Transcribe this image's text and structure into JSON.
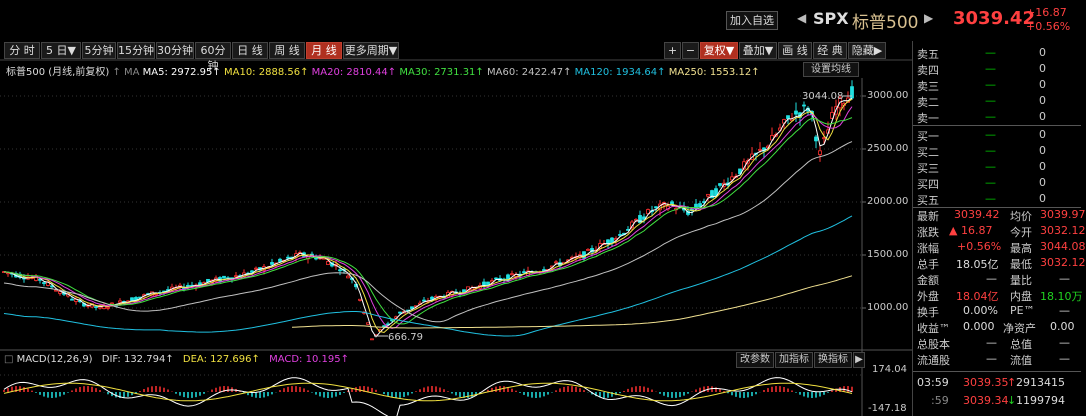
{
  "header": {
    "add_watch": "加入自选",
    "prev": "◀",
    "next": "▶",
    "symbol": "SPX",
    "name": "标普500",
    "last": "3039.42",
    "change": "+16.87",
    "change_pct": "+0.56%"
  },
  "toolbar": {
    "periods": [
      "分 时",
      "5 日▼",
      "5分钟",
      "15分钟",
      "30分钟",
      "60分钟",
      "日 线",
      "周 线",
      "月 线",
      "更多周期▼"
    ],
    "active": "月 线",
    "right_buttons": [
      "+",
      "−",
      "复权▼",
      "叠加▼",
      "画 线",
      "经 典",
      "隐藏▶"
    ]
  },
  "indicators": {
    "title": "标普500 (月线,前复权)",
    "ma_label": "MA",
    "ma5": "MA5: 2972.95",
    "ma10": "MA10: 2888.56",
    "ma20": "MA20: 2810.44",
    "ma30": "MA30: 2731.31",
    "ma60": "MA60: 2422.47",
    "ma120": "MA120: 1934.64",
    "ma250": "MA250: 1553.12",
    "set_ma": "设置均线",
    "colors": {
      "ma5": "#ffffff",
      "ma10": "#f0e040",
      "ma20": "#e040e0",
      "ma30": "#40e040",
      "ma60": "#c0c0c0",
      "ma120": "#20c0e0",
      "ma250": "#f0e090"
    }
  },
  "axis": {
    "y_labels": [
      "3000.00",
      "2500.00",
      "2000.00",
      "1500.00",
      "1000.00"
    ],
    "macd_labels": [
      "174.04",
      "-147.18"
    ]
  },
  "annotations": {
    "high": "3044.08",
    "low": "666.79"
  },
  "macd": {
    "title": "MACD(12,26,9)",
    "dif": "DIF: 132.794",
    "dea": "DEA: 127.696",
    "macd": "MACD: 10.195",
    "buttons": [
      "改参数",
      "加指标",
      "换指标",
      "▶"
    ]
  },
  "orderbook": {
    "asks": [
      {
        "label": "卖五",
        "price": "—",
        "vol": "0"
      },
      {
        "label": "卖四",
        "price": "—",
        "vol": "0"
      },
      {
        "label": "卖三",
        "price": "—",
        "vol": "0"
      },
      {
        "label": "卖二",
        "price": "—",
        "vol": "0"
      },
      {
        "label": "卖一",
        "price": "—",
        "vol": "0"
      }
    ],
    "bids": [
      {
        "label": "买一",
        "price": "—",
        "vol": "0"
      },
      {
        "label": "买二",
        "price": "—",
        "vol": "0"
      },
      {
        "label": "买三",
        "price": "—",
        "vol": "0"
      },
      {
        "label": "买四",
        "price": "—",
        "vol": "0"
      },
      {
        "label": "买五",
        "price": "—",
        "vol": "0"
      }
    ]
  },
  "stats": {
    "zuixin_l": "最新",
    "zuixin": "3039.42",
    "junjia_l": "均价",
    "junjia": "3039.97",
    "zhangdie_l": "涨跌",
    "zhangdie": "▲ 16.87",
    "jinkai_l": "今开",
    "jinkai": "3032.12",
    "zhangfu_l": "涨幅",
    "zhangfu": "+0.56%",
    "zuigao_l": "最高",
    "zuigao": "3044.08",
    "zongshou_l": "总手",
    "zongshou": "18.05亿",
    "zuidi_l": "最低",
    "zuidi": "3032.12",
    "jine_l": "金额",
    "jine": "—",
    "liangbi_l": "量比",
    "liangbi": "—",
    "waipan_l": "外盘",
    "waipan": "18.04亿",
    "neipan_l": "内盘",
    "neipan": "18.10万",
    "huanshou_l": "换手",
    "huanshou": "0.00%",
    "pe_l": "PE™",
    "pe": "—",
    "shouyi_l": "收益™",
    "shouyi": "0.000",
    "jingzichan_l": "净资产",
    "jingzichan": "0.00",
    "zongguben_l": "总股本",
    "zongguben": "—",
    "zongzhi_l": "总值",
    "zongzhi": "—",
    "liutong_l": "流通股",
    "liutong": "—",
    "liuzhi_l": "流值",
    "liuzhi": "—"
  },
  "ticks": [
    {
      "time": "03:59",
      "price": "3039.35",
      "arrow": "↑",
      "vol": "2913415"
    },
    {
      "time": ":59",
      "price": "3039.34",
      "arrow": "↓",
      "vol": "1199794"
    }
  ]
}
